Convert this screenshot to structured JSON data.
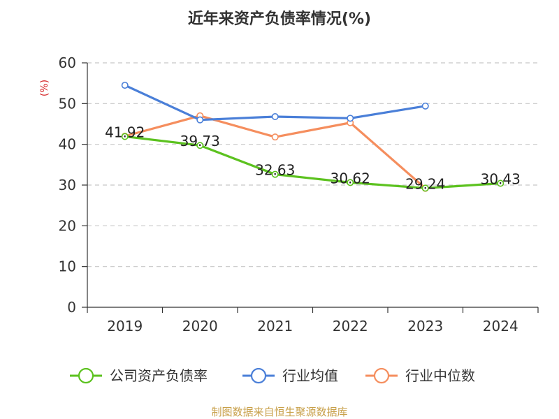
{
  "chart_data": {
    "type": "line",
    "title": "近年来资产负债率情况(%)",
    "ylabel": "(%)",
    "ylim": [
      0,
      60
    ],
    "yticks": [
      0,
      10,
      20,
      30,
      40,
      50,
      60
    ],
    "categories": [
      "2019",
      "2020",
      "2021",
      "2022",
      "2023",
      "2024"
    ],
    "grid": true,
    "legend_position": "bottom",
    "series": [
      {
        "name": "公司资产负债率",
        "color": "#5cc21f",
        "values": [
          41.92,
          39.73,
          32.63,
          30.62,
          29.24,
          30.43
        ],
        "labels": [
          "41.92",
          "39.73",
          "32.63",
          "30.62",
          "29.24",
          "30.43"
        ]
      },
      {
        "name": "行业均值",
        "color": "#4a7fd8",
        "values": [
          54.5,
          46.0,
          46.8,
          46.4,
          49.4,
          null
        ]
      },
      {
        "name": "行业中位数",
        "color": "#f58e5e",
        "values": [
          42.0,
          47.0,
          41.8,
          45.3,
          29.2,
          null
        ]
      }
    ],
    "source": "制图数据来自恒生聚源数据库",
    "source_color": "#c8a04a",
    "ylabel_color": "#d62728"
  }
}
